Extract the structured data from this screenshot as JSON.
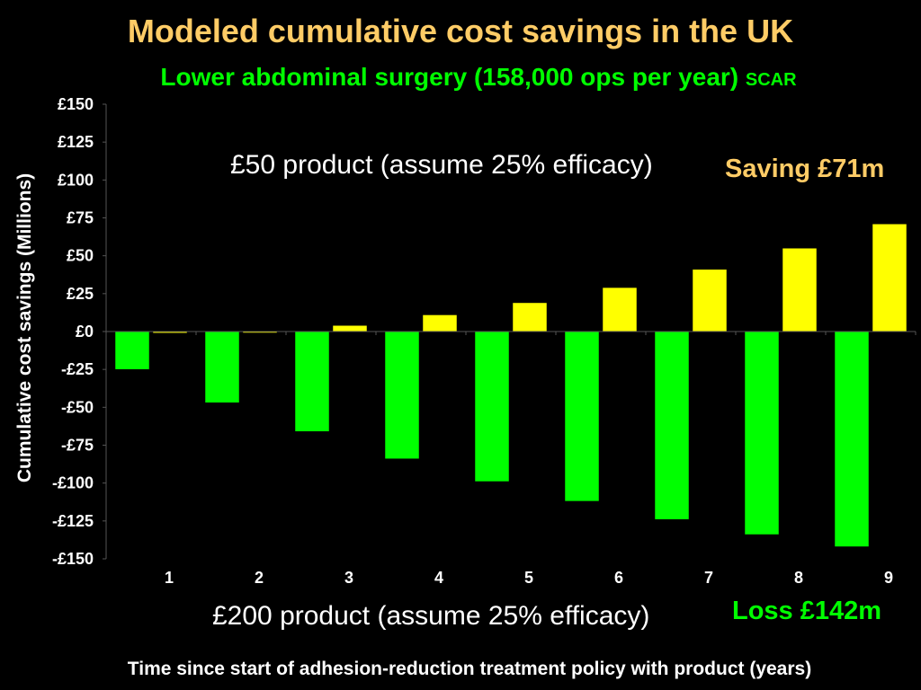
{
  "title": "Modeled cumulative cost savings in the UK",
  "subtitle": "Lower abdominal surgery (158,000 ops per year)",
  "subtitle_tag": "SCAR",
  "annotations": {
    "top_product": "£50 product (assume 25% efficacy)",
    "bottom_product": "£200 product (assume 25% efficacy)",
    "saving": "Saving £71m",
    "loss": "Loss £142m"
  },
  "colors": {
    "title": "#ffcc66",
    "green": "#00ff00",
    "yellow": "#ffff00",
    "background": "#000000"
  },
  "chart_data": {
    "type": "bar",
    "categories": [
      "1",
      "2",
      "3",
      "4",
      "5",
      "6",
      "7",
      "8",
      "9"
    ],
    "series": [
      {
        "name": "£200 product (assume 25% efficacy)",
        "color": "#00ff00",
        "values": [
          -25,
          -47,
          -66,
          -84,
          -99,
          -112,
          -124,
          -134,
          -142
        ]
      },
      {
        "name": "£50 product (assume 25% efficacy)",
        "color": "#ffff00",
        "values": [
          -1,
          0,
          4,
          11,
          19,
          29,
          41,
          55,
          71
        ]
      }
    ],
    "ylabel": "Cumulative cost savings (Millions)",
    "xlabel": "Time since start of adhesion-reduction treatment policy with product (years)",
    "ylim": [
      -150,
      150
    ],
    "yticks": [
      150,
      125,
      100,
      75,
      50,
      25,
      0,
      -25,
      -50,
      -75,
      -100,
      -125,
      -150
    ],
    "ytick_labels": [
      "£150",
      "£125",
      "£100",
      "£75",
      "£50",
      "£25",
      "£0",
      "-£25",
      "-£50",
      "-£75",
      "-£100",
      "-£125",
      "-£150"
    ],
    "grid": false
  }
}
